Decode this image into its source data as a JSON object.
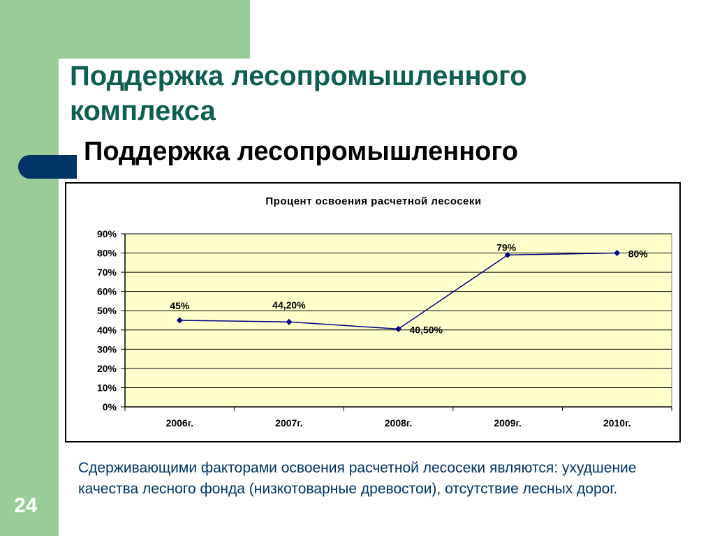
{
  "slide": {
    "title": "Поддержка лесопромышленного комплекса",
    "subtitle": "Поддержка лесопромышленного",
    "caption": "Сдерживающими факторами освоения расчетной лесосеки являются: ухудшение качества лесного фонда (низкотоварные древостои), отсутствие лесных дорог.",
    "page_number": "24"
  },
  "colors": {
    "title": "#0f5e52",
    "caption": "#003366",
    "band": "#99cc99",
    "accent": "#003366",
    "plot_background": "#ffffcc",
    "series_line": "#000080"
  },
  "chart_data": {
    "type": "line",
    "title": "Процент освоения расчетной лесосеки",
    "categories": [
      "2006г.",
      "2007г.",
      "2008г.",
      "2009г.",
      "2010г."
    ],
    "series": [
      {
        "values": [
          45,
          44.2,
          40.5,
          79,
          80
        ],
        "data_labels": [
          "45%",
          "44,20%",
          "40,50%",
          "79%",
          "80%"
        ]
      }
    ],
    "ylim": [
      0,
      90
    ],
    "yticks": [
      0,
      10,
      20,
      30,
      40,
      50,
      60,
      70,
      80,
      90
    ],
    "ytick_labels": [
      "0%",
      "10%",
      "20%",
      "30%",
      "40%",
      "50%",
      "60%",
      "70%",
      "80%",
      "90%"
    ],
    "grid": true,
    "legend": "none"
  }
}
